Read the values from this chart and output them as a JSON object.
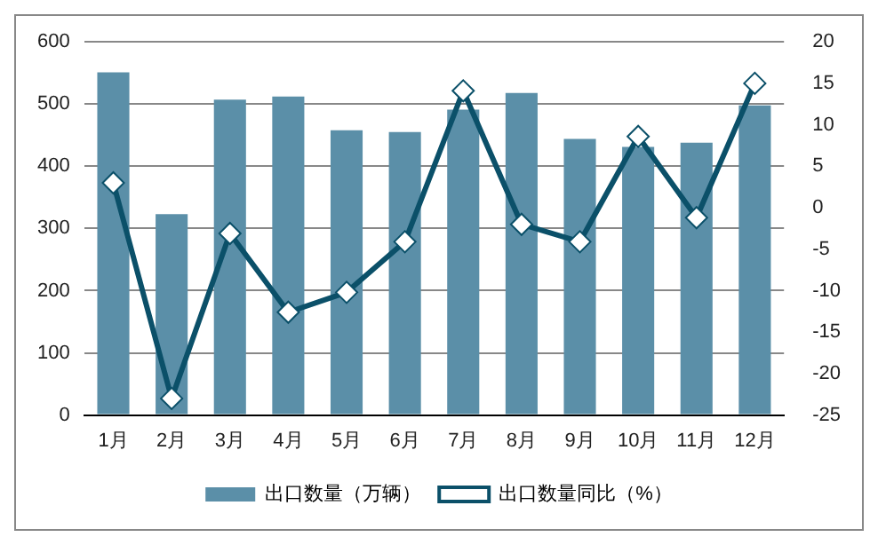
{
  "chart_data": {
    "type": "bar",
    "categories": [
      "1月",
      "2月",
      "3月",
      "4月",
      "5月",
      "6月",
      "7月",
      "8月",
      "9月",
      "10月",
      "11月",
      "12月"
    ],
    "series": [
      {
        "name": "出口数量（万辆）",
        "color": "#5b8fa8",
        "values": [
          551,
          323,
          507,
          512,
          458,
          455,
          491,
          518,
          444,
          431,
          438,
          498
        ]
      },
      {
        "name": "出口数量同比（%）",
        "type": "line",
        "axis": "y2",
        "color": "#0b5069",
        "marker": "diamond",
        "values": [
          3.0,
          -23,
          -3.1,
          -12.6,
          -10.2,
          -4.1,
          14.1,
          -2.0,
          -4.1,
          8.6,
          -1.2,
          15.0
        ]
      }
    ],
    "ylim": [
      0,
      600
    ],
    "yticks": [
      0,
      100,
      200,
      300,
      400,
      500,
      600
    ],
    "y2lim": [
      -25,
      20
    ],
    "y2ticks": [
      -25,
      -20,
      -15,
      -10,
      -5,
      0,
      5,
      10,
      15,
      20
    ],
    "grid": "y",
    "legend": "bottom"
  }
}
